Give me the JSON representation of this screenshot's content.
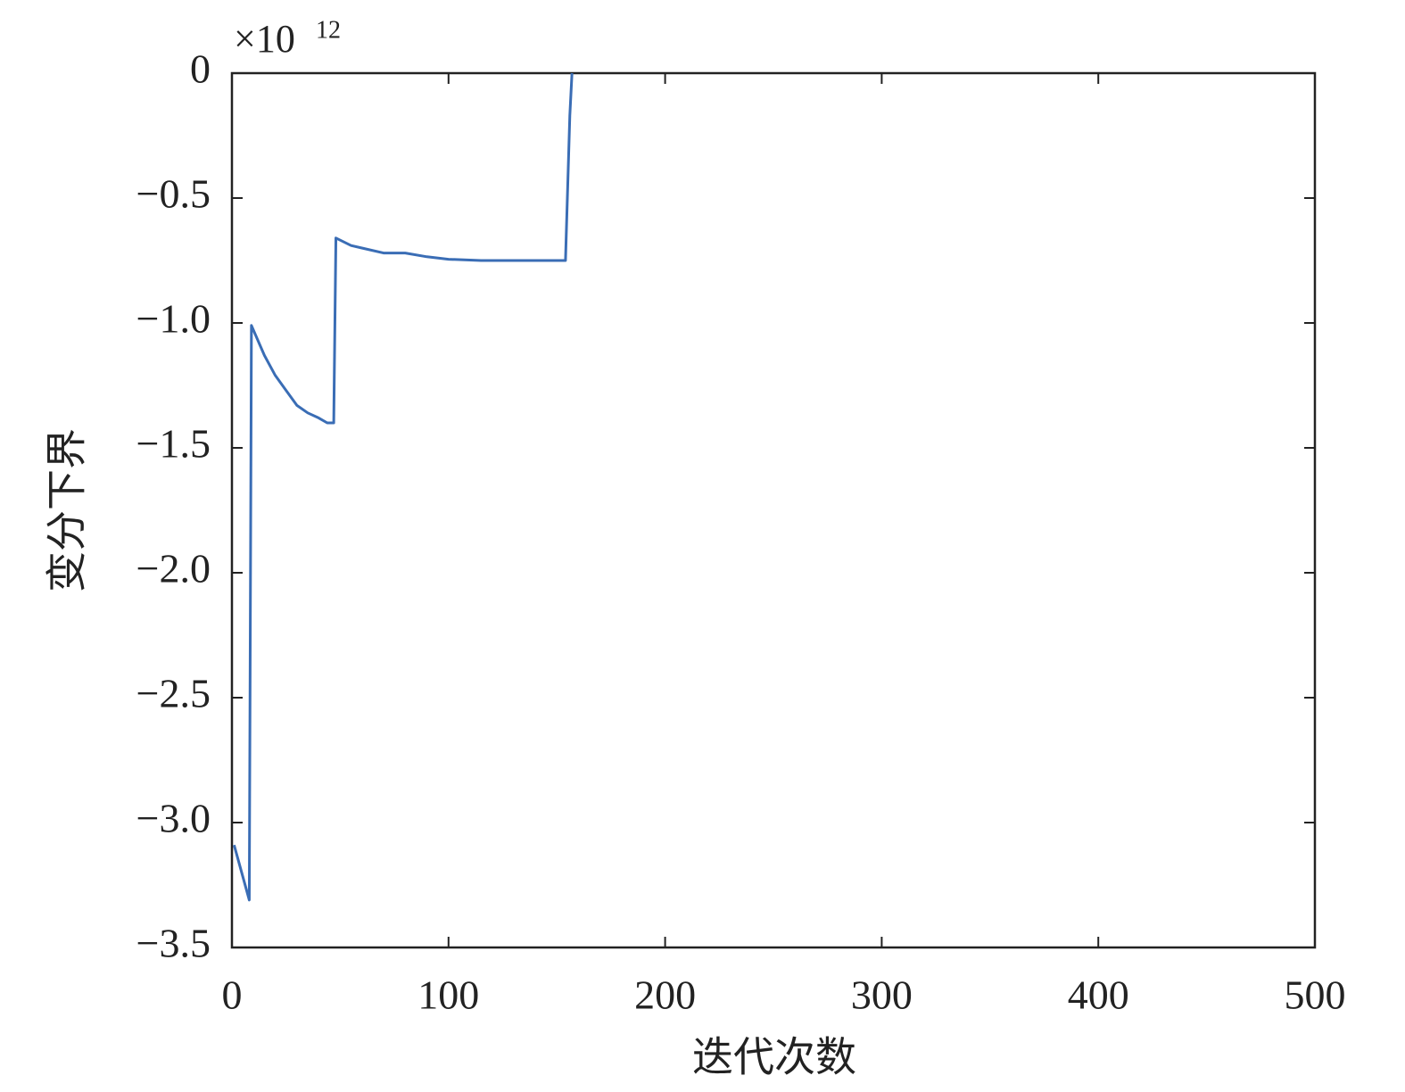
{
  "chart_data": {
    "type": "line",
    "x_label": "迭代次数",
    "y_label": "变分下界",
    "y_multiplier": {
      "base": "×10",
      "exponent": "12"
    },
    "x": [
      1,
      8,
      9,
      12,
      15,
      20,
      25,
      30,
      35,
      40,
      44,
      47,
      48,
      55,
      60,
      70,
      80,
      90,
      100,
      115,
      154,
      156,
      157
    ],
    "values": [
      -3.09,
      -3.31,
      -1.01,
      -1.07,
      -1.13,
      -1.21,
      -1.27,
      -1.33,
      -1.36,
      -1.38,
      -1.4,
      -1.4,
      -0.66,
      -0.69,
      -0.7,
      -0.72,
      -0.72,
      -0.735,
      -0.745,
      -0.75,
      -0.75,
      -0.17,
      0
    ],
    "color": "#3a6db5",
    "xlim": [
      0,
      500
    ],
    "xticks": [
      0,
      100,
      200,
      300,
      400,
      500
    ],
    "ylim": [
      -3.5,
      0
    ],
    "yticks": [
      {
        "value": -3.5,
        "label": "−3.5"
      },
      {
        "value": -3,
        "label": "−3.0"
      },
      {
        "value": -2.5,
        "label": "−2.5"
      },
      {
        "value": -2,
        "label": "−2.0"
      },
      {
        "value": -1.5,
        "label": "−1.5"
      },
      {
        "value": -1,
        "label": "−1.0"
      },
      {
        "value": -0.5,
        "label": "−0.5"
      },
      0
    ]
  }
}
